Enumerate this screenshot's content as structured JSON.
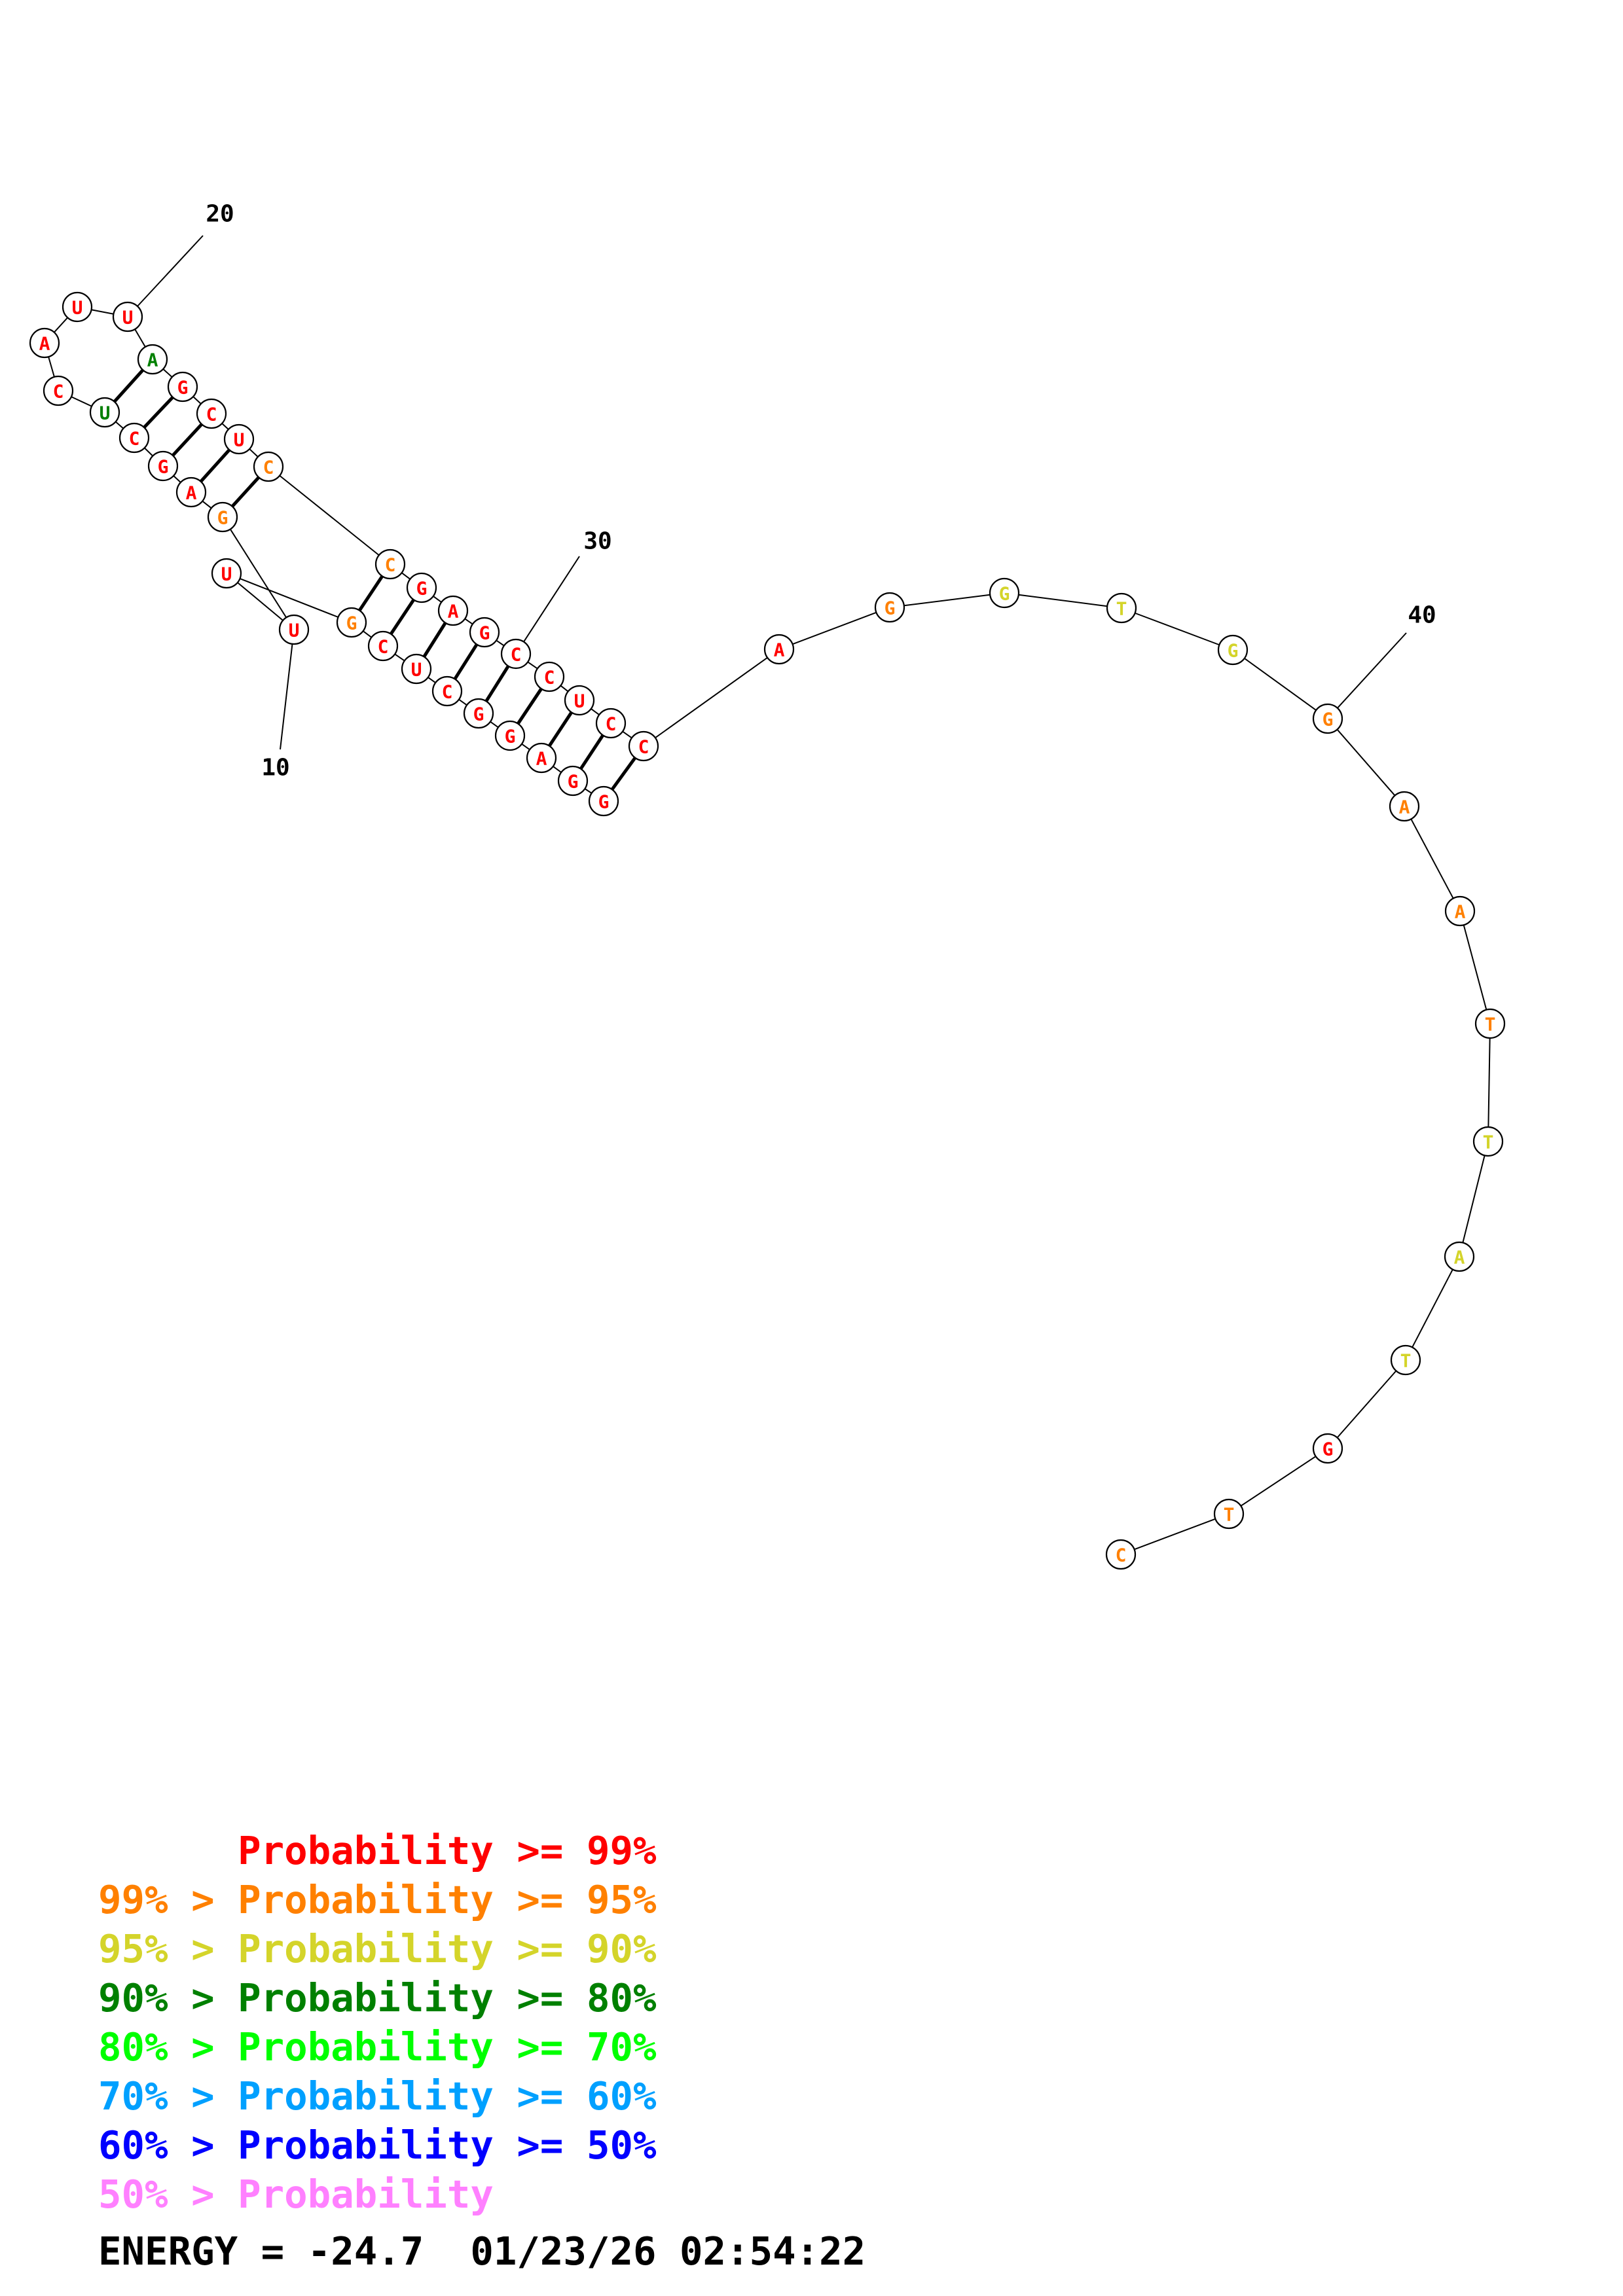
{
  "colors": {
    "p99": "#ff0000",
    "p95": "#ff8000",
    "p90": "#d4d42a",
    "p80": "#008000",
    "p70": "#00ff00",
    "p60": "#00a0ff",
    "p50": "#0000ff",
    "plow": "#ff80ff"
  },
  "structure": {
    "nucleotides": [
      {
        "n": 1,
        "base": "G",
        "prob": "p99"
      },
      {
        "n": 2,
        "base": "G",
        "prob": "p99"
      },
      {
        "n": 3,
        "base": "A",
        "prob": "p99"
      },
      {
        "n": 4,
        "base": "G",
        "prob": "p99"
      },
      {
        "n": 5,
        "base": "G",
        "prob": "p99"
      },
      {
        "n": 6,
        "base": "C",
        "prob": "p99"
      },
      {
        "n": 7,
        "base": "U",
        "prob": "p99"
      },
      {
        "n": 8,
        "base": "C",
        "prob": "p99"
      },
      {
        "n": 9,
        "base": "G",
        "prob": "p95"
      },
      {
        "n": 10,
        "base": "U",
        "prob": "p99"
      },
      {
        "n": 11,
        "base": "U",
        "prob": "p99"
      },
      {
        "n": 12,
        "base": "G",
        "prob": "p95"
      },
      {
        "n": 13,
        "base": "A",
        "prob": "p99"
      },
      {
        "n": 14,
        "base": "G",
        "prob": "p99"
      },
      {
        "n": 15,
        "base": "C",
        "prob": "p99"
      },
      {
        "n": 16,
        "base": "U",
        "prob": "p80"
      },
      {
        "n": 17,
        "base": "C",
        "prob": "p99"
      },
      {
        "n": 18,
        "base": "A",
        "prob": "p99"
      },
      {
        "n": 19,
        "base": "U",
        "prob": "p99"
      },
      {
        "n": 20,
        "base": "U",
        "prob": "p99"
      },
      {
        "n": 21,
        "base": "A",
        "prob": "p80"
      },
      {
        "n": 22,
        "base": "G",
        "prob": "p99"
      },
      {
        "n": 23,
        "base": "C",
        "prob": "p99"
      },
      {
        "n": 24,
        "base": "U",
        "prob": "p99"
      },
      {
        "n": 25,
        "base": "C",
        "prob": "p95"
      },
      {
        "n": 26,
        "base": "C",
        "prob": "p95"
      },
      {
        "n": 27,
        "base": "G",
        "prob": "p99"
      },
      {
        "n": 28,
        "base": "A",
        "prob": "p99"
      },
      {
        "n": 29,
        "base": "G",
        "prob": "p99"
      },
      {
        "n": 30,
        "base": "C",
        "prob": "p99"
      },
      {
        "n": 31,
        "base": "C",
        "prob": "p99"
      },
      {
        "n": 32,
        "base": "U",
        "prob": "p99"
      },
      {
        "n": 33,
        "base": "C",
        "prob": "p99"
      },
      {
        "n": 34,
        "base": "C",
        "prob": "p99"
      },
      {
        "n": 35,
        "base": "A",
        "prob": "p99"
      },
      {
        "n": 36,
        "base": "G",
        "prob": "p95"
      },
      {
        "n": 37,
        "base": "G",
        "prob": "p90"
      },
      {
        "n": 38,
        "base": "T",
        "prob": "p90"
      },
      {
        "n": 39,
        "base": "G",
        "prob": "p90"
      },
      {
        "n": 40,
        "base": "G",
        "prob": "p95"
      },
      {
        "n": 41,
        "base": "A",
        "prob": "p95"
      },
      {
        "n": 42,
        "base": "A",
        "prob": "p95"
      },
      {
        "n": 43,
        "base": "T",
        "prob": "p95"
      },
      {
        "n": 44,
        "base": "T",
        "prob": "p90"
      },
      {
        "n": 45,
        "base": "A",
        "prob": "p90"
      },
      {
        "n": 46,
        "base": "T",
        "prob": "p90"
      },
      {
        "n": 47,
        "base": "G",
        "prob": "p99"
      },
      {
        "n": 48,
        "base": "T",
        "prob": "p95"
      },
      {
        "n": 49,
        "base": "C",
        "prob": "p95"
      }
    ],
    "pairs": [
      [
        1,
        34
      ],
      [
        2,
        33
      ],
      [
        3,
        32
      ],
      [
        4,
        31
      ],
      [
        5,
        30
      ],
      [
        6,
        29
      ],
      [
        7,
        28
      ],
      [
        8,
        27
      ],
      [
        9,
        26
      ],
      [
        12,
        25
      ],
      [
        13,
        24
      ],
      [
        14,
        23
      ],
      [
        15,
        22
      ],
      [
        16,
        21
      ]
    ],
    "position_labels": [
      "10",
      "20",
      "30",
      "40"
    ]
  },
  "legend": {
    "rows": [
      {
        "prefix": "",
        "text": "Probability >= 99%",
        "color": "p99"
      },
      {
        "prefix": "99% > ",
        "text": "Probability >= 95%",
        "color": "p95"
      },
      {
        "prefix": "95% > ",
        "text": "Probability >= 90%",
        "color": "p90"
      },
      {
        "prefix": "90% > ",
        "text": "Probability >= 80%",
        "color": "p80"
      },
      {
        "prefix": "80% > ",
        "text": "Probability >= 70%",
        "color": "p70"
      },
      {
        "prefix": "70% > ",
        "text": "Probability >= 60%",
        "color": "p60"
      },
      {
        "prefix": "60% > ",
        "text": "Probability >= 50%",
        "color": "p50"
      },
      {
        "prefix": "50% > ",
        "text": "Probability",
        "color": "plow"
      }
    ]
  },
  "footer": {
    "energy": "ENERGY = -24.7  01/23/26 02:54:22"
  }
}
